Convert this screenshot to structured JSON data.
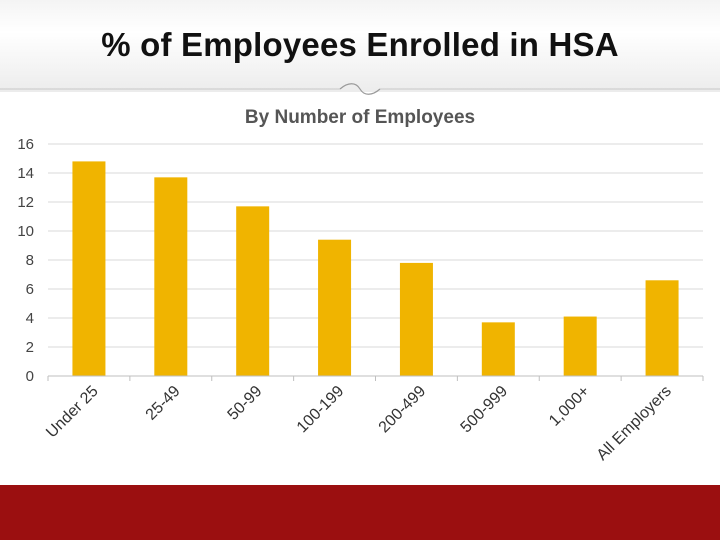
{
  "slide": {
    "title": "% of Employees Enrolled in HSA"
  },
  "colors": {
    "bar": "#f0b400",
    "footer": "#9b0f10",
    "grid": "#d9d9d9"
  },
  "chart_data": {
    "type": "bar",
    "title": "By Number of Employees",
    "xlabel": "",
    "ylabel": "",
    "categories": [
      "Under 25",
      "25-49",
      "50-99",
      "100-199",
      "200-499",
      "500-999",
      "1,000+",
      "All Employers"
    ],
    "values": [
      14.8,
      13.7,
      11.7,
      9.4,
      7.8,
      3.7,
      4.1,
      6.6
    ],
    "ylim": [
      0,
      16
    ],
    "yticks": [
      "0",
      "2",
      "4",
      "6",
      "8",
      "10",
      "12",
      "14",
      "16"
    ],
    "grid": true,
    "legend": "none"
  }
}
